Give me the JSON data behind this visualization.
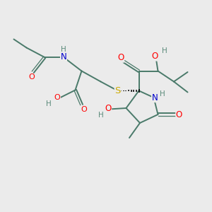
{
  "background_color": "#ebebeb",
  "bond_color": "#4a7a6a",
  "atom_colors": {
    "O": "#ff0000",
    "N": "#0000cc",
    "S": "#ccaa00",
    "H": "#5a8a7a",
    "C": "#4a7a6a"
  },
  "figsize": [
    3.0,
    3.0
  ],
  "dpi": 100
}
